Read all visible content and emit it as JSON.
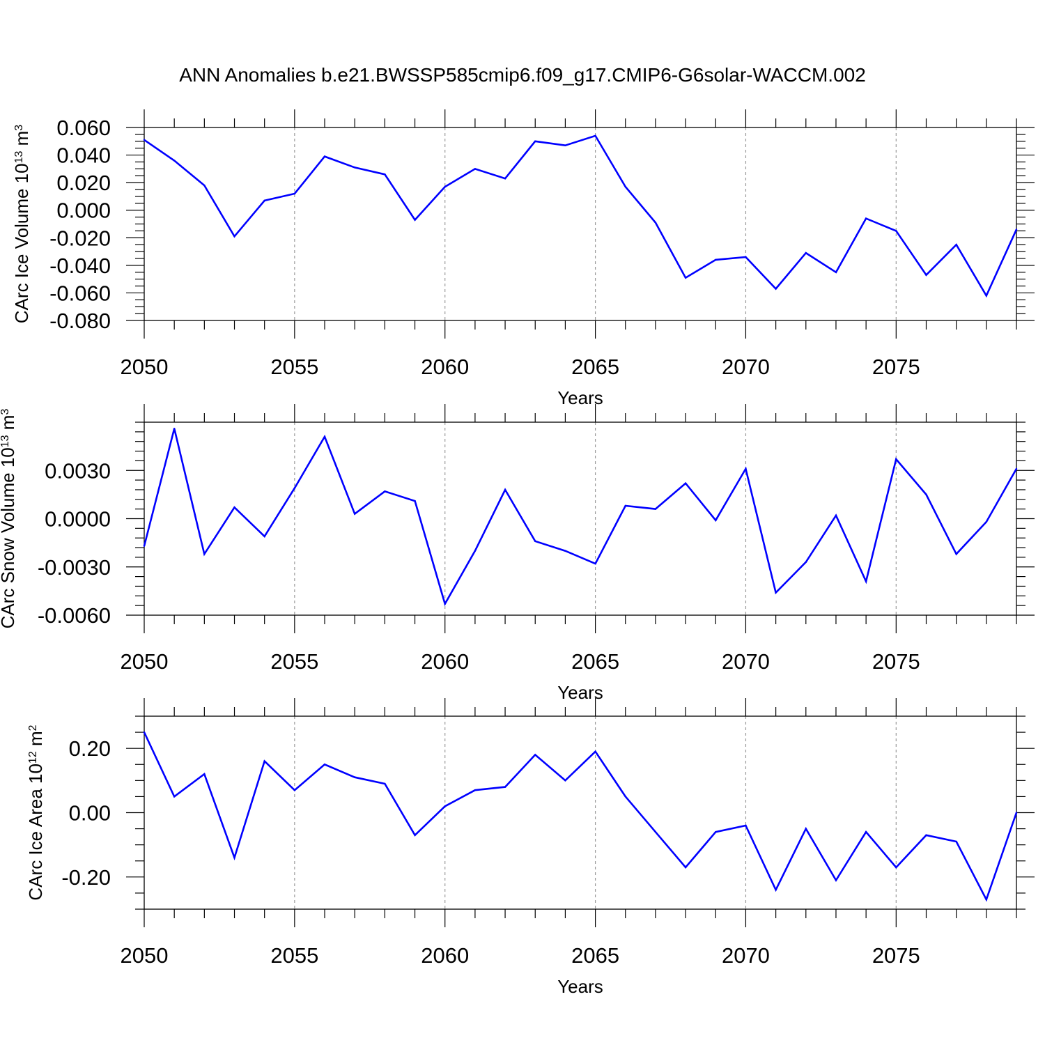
{
  "title": "ANN Anomalies b.e21.BWSSP585cmip6.f09_g17.CMIP6-G6solar-WACCM.002",
  "line_color": "#0000ff",
  "chart_data": [
    {
      "type": "line",
      "xlabel": "Years",
      "ylabel_main": "CArc Ice Volume 10",
      "ylabel_sup1": "13",
      "ylabel_unit": " m",
      "ylabel_sup2": "3",
      "xlim": [
        2050,
        2079
      ],
      "ylim": [
        -0.08,
        0.06
      ],
      "x_ticks": [
        2050,
        2055,
        2060,
        2065,
        2070,
        2075
      ],
      "x_tick_labels": [
        "2050",
        "2055",
        "2060",
        "2065",
        "2070",
        "2075"
      ],
      "y_ticks": [
        0.06,
        0.04,
        0.02,
        0.0,
        -0.02,
        -0.04,
        -0.06,
        -0.08
      ],
      "y_tick_labels": [
        "0.060",
        "0.040",
        "0.020",
        "0.000",
        "-0.020",
        "-0.040",
        "-0.060",
        "-0.080"
      ],
      "y_minor_step": 0.005,
      "x": [
        2050,
        2051,
        2052,
        2053,
        2054,
        2055,
        2056,
        2057,
        2058,
        2059,
        2060,
        2061,
        2062,
        2063,
        2064,
        2065,
        2066,
        2067,
        2068,
        2069,
        2070,
        2071,
        2072,
        2073,
        2074,
        2075,
        2076,
        2077,
        2078,
        2079
      ],
      "values": [
        0.051,
        0.036,
        0.018,
        -0.019,
        0.007,
        0.012,
        0.039,
        0.031,
        0.026,
        -0.007,
        0.017,
        0.03,
        0.023,
        0.05,
        0.047,
        0.054,
        0.017,
        -0.009,
        -0.049,
        -0.036,
        -0.034,
        -0.057,
        -0.031,
        -0.045,
        -0.006,
        -0.015,
        -0.047,
        -0.025,
        -0.062,
        -0.014
      ]
    },
    {
      "type": "line",
      "xlabel": "Years",
      "ylabel_main": "CArc Snow Volume 10",
      "ylabel_sup1": "13",
      "ylabel_unit": " m",
      "ylabel_sup2": "3",
      "xlim": [
        2050,
        2079
      ],
      "ylim": [
        -0.006,
        0.006
      ],
      "x_ticks": [
        2050,
        2055,
        2060,
        2065,
        2070,
        2075
      ],
      "x_tick_labels": [
        "2050",
        "2055",
        "2060",
        "2065",
        "2070",
        "2075"
      ],
      "y_ticks": [
        0.003,
        0.0,
        -0.003,
        -0.006
      ],
      "y_tick_labels": [
        "0.0030",
        "0.0000",
        "-0.0030",
        "-0.0060"
      ],
      "y_minor_step": 0.0006,
      "x": [
        2050,
        2051,
        2052,
        2053,
        2054,
        2055,
        2056,
        2057,
        2058,
        2059,
        2060,
        2061,
        2062,
        2063,
        2064,
        2065,
        2066,
        2067,
        2068,
        2069,
        2070,
        2071,
        2072,
        2073,
        2074,
        2075,
        2076,
        2077,
        2078,
        2079
      ],
      "values": [
        -0.0017,
        0.0056,
        -0.0022,
        0.0007,
        -0.0011,
        0.0019,
        0.0051,
        0.0003,
        0.0017,
        0.0011,
        -0.0053,
        -0.002,
        0.0018,
        -0.0014,
        -0.002,
        -0.0028,
        0.0008,
        0.0006,
        0.0022,
        -0.0001,
        0.0031,
        -0.0046,
        -0.0027,
        0.0002,
        -0.0039,
        0.0037,
        0.0015,
        -0.0022,
        -0.0002,
        0.0031
      ]
    },
    {
      "type": "line",
      "xlabel": "Years",
      "ylabel_main": "CArc Ice Area 10",
      "ylabel_sup1": "12",
      "ylabel_unit": " m",
      "ylabel_sup2": "2",
      "xlim": [
        2050,
        2079
      ],
      "ylim": [
        -0.3,
        0.3
      ],
      "x_ticks": [
        2050,
        2055,
        2060,
        2065,
        2070,
        2075
      ],
      "x_tick_labels": [
        "2050",
        "2055",
        "2060",
        "2065",
        "2070",
        "2075"
      ],
      "y_ticks": [
        0.2,
        0.0,
        -0.2
      ],
      "y_tick_labels": [
        "0.20",
        "0.00",
        "-0.20"
      ],
      "y_minor_step": 0.05,
      "x": [
        2050,
        2051,
        2052,
        2053,
        2054,
        2055,
        2056,
        2057,
        2058,
        2059,
        2060,
        2061,
        2062,
        2063,
        2064,
        2065,
        2066,
        2067,
        2068,
        2069,
        2070,
        2071,
        2072,
        2073,
        2074,
        2075,
        2076,
        2077,
        2078,
        2079
      ],
      "values": [
        0.25,
        0.05,
        0.12,
        -0.14,
        0.16,
        0.07,
        0.15,
        0.11,
        0.09,
        -0.07,
        0.02,
        0.07,
        0.08,
        0.18,
        0.1,
        0.19,
        0.05,
        -0.06,
        -0.17,
        -0.06,
        -0.04,
        -0.24,
        -0.05,
        -0.21,
        -0.06,
        -0.17,
        -0.07,
        -0.09,
        -0.27,
        0.0
      ]
    }
  ]
}
